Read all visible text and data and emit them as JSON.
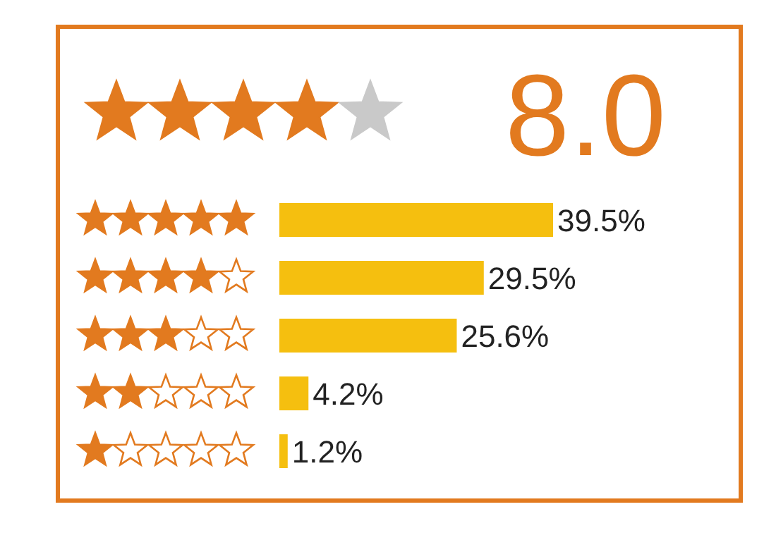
{
  "chart_data": {
    "type": "bar",
    "orientation": "horizontal",
    "categories": [
      null,
      null,
      null,
      null,
      null
    ],
    "values": [
      39.5,
      29.5,
      25.6,
      4.2,
      1.2
    ],
    "value_labels": [
      "39.5%",
      "29.5%",
      "25.6%",
      "4.2%",
      "1.2%"
    ],
    "color": "#f5bf0f",
    "annotations": [
      "8.0"
    ]
  }
}
